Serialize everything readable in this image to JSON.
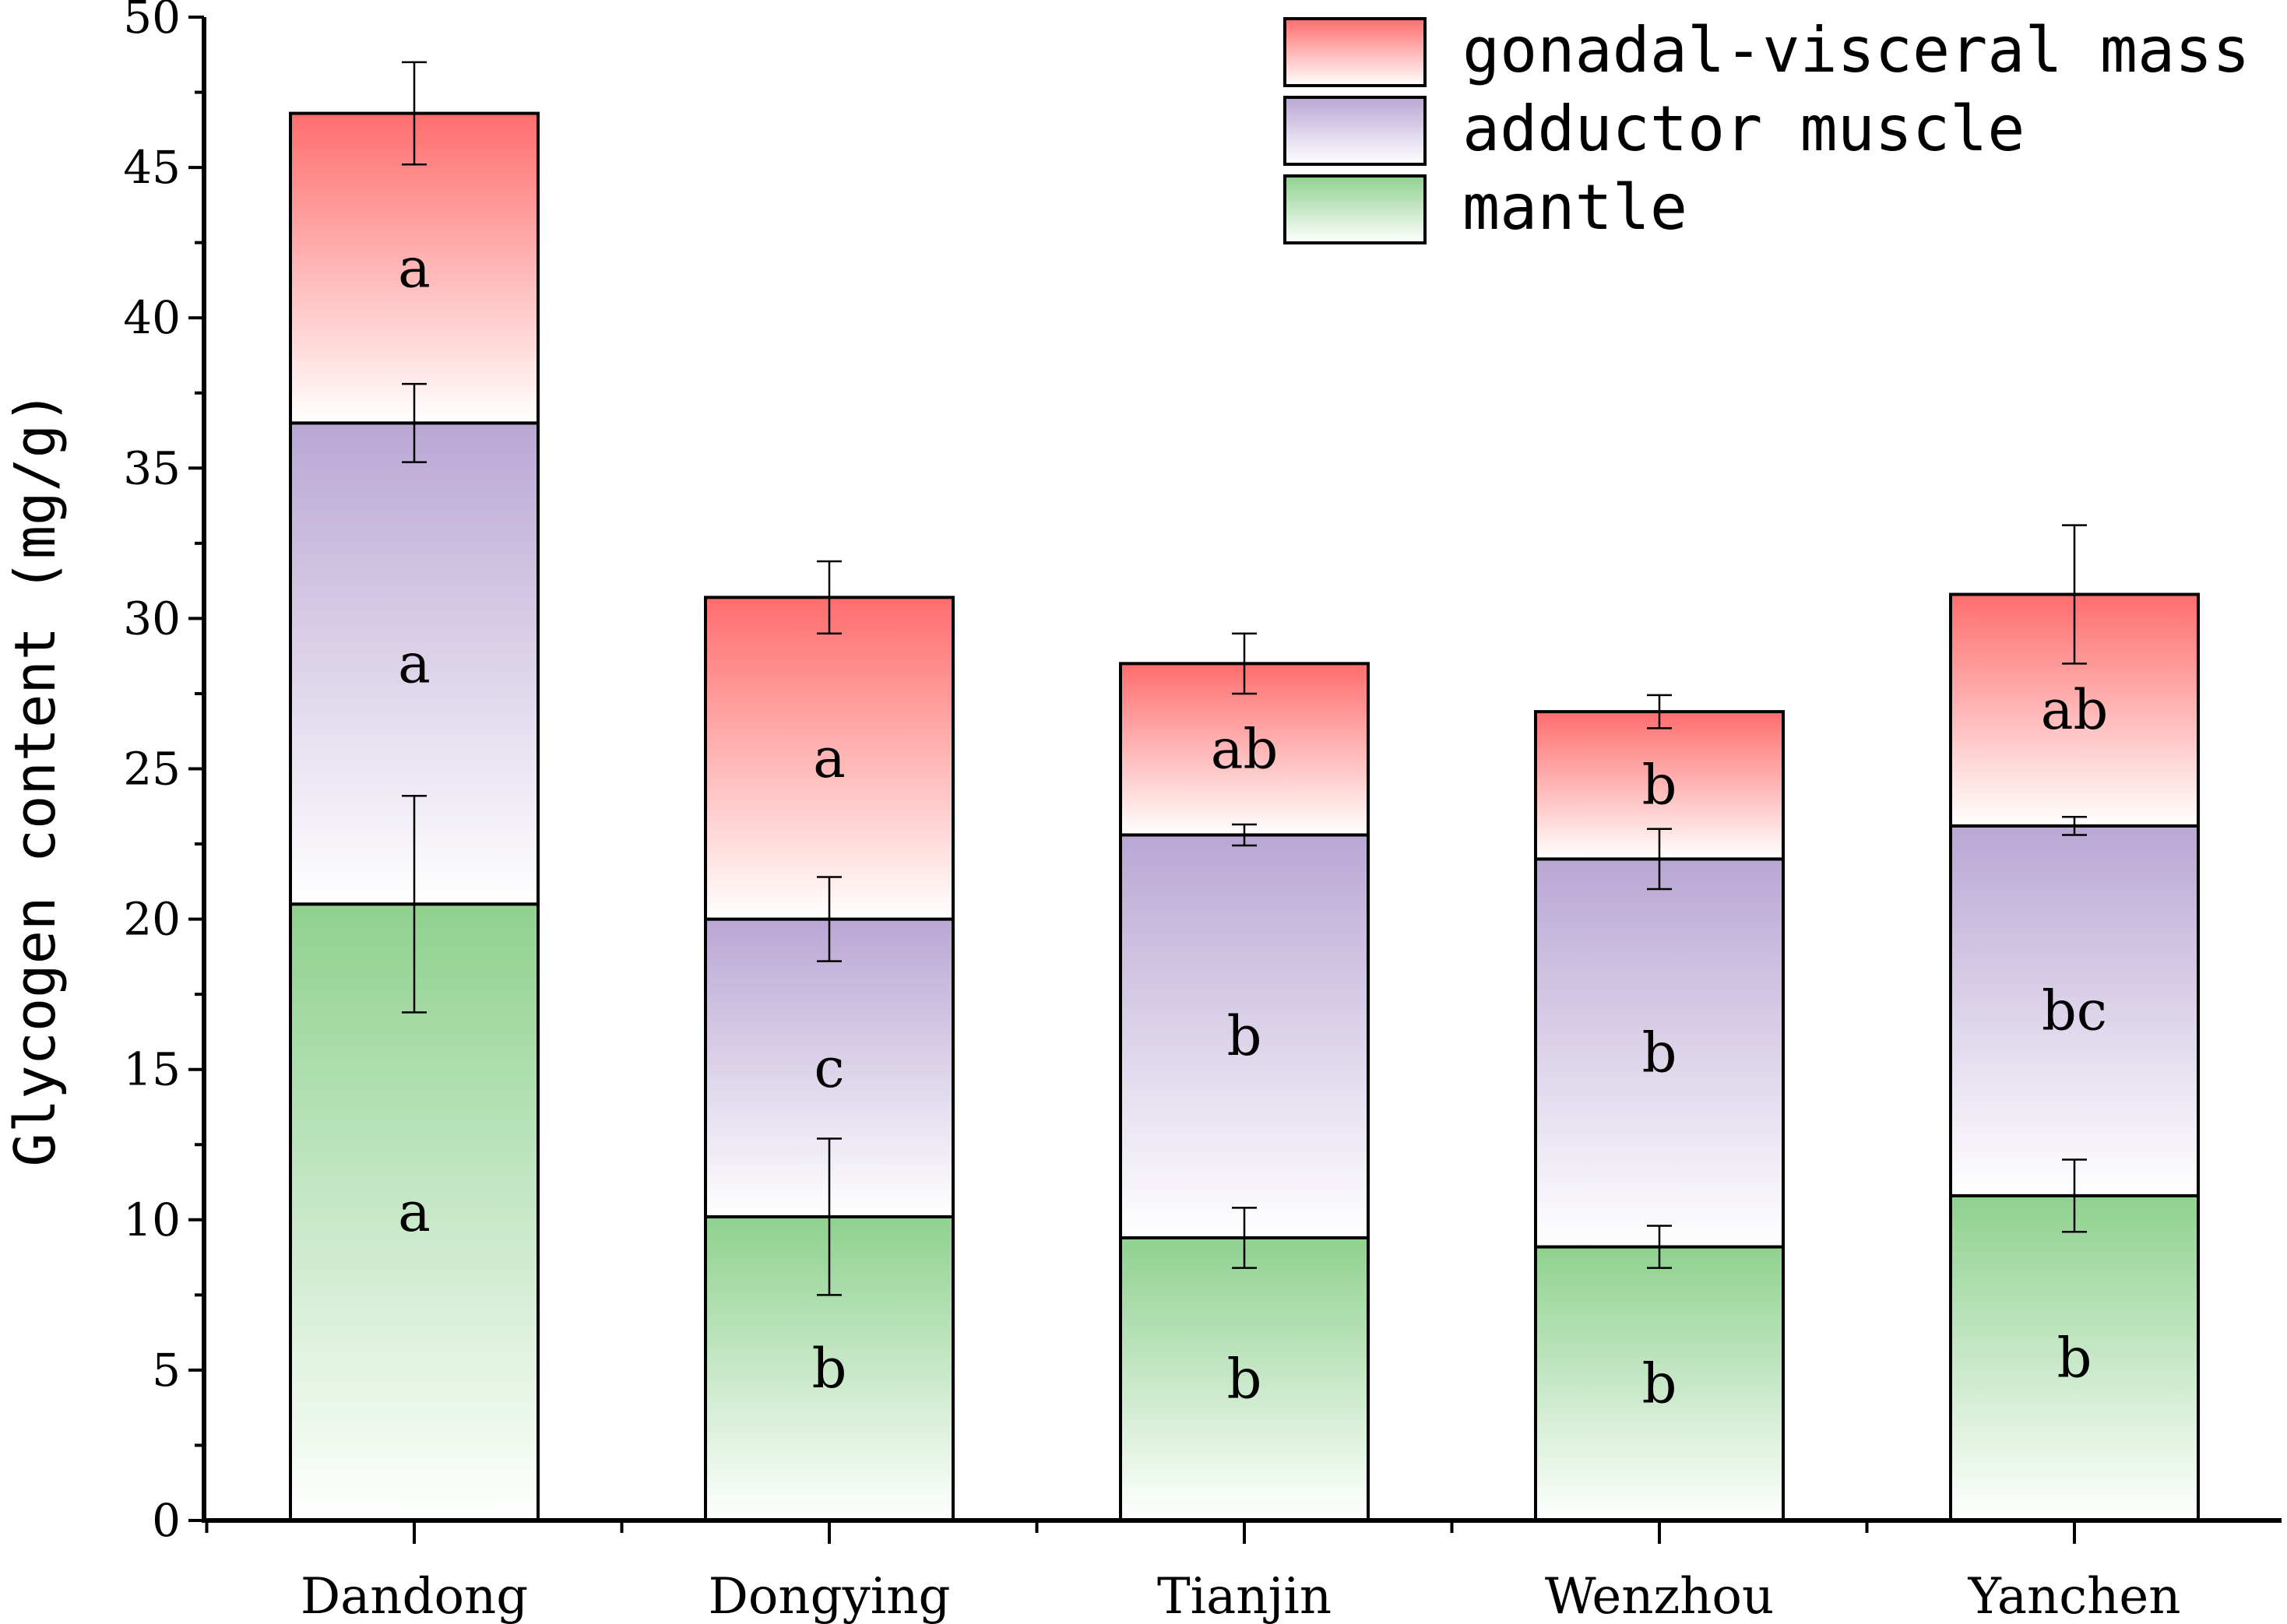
{
  "chart_data": {
    "type": "bar",
    "stacked": true,
    "title": "",
    "xlabel": "",
    "ylabel": "Glycogen content (mg/g)",
    "ylim": [
      0,
      50
    ],
    "yticks": [
      "0",
      "5",
      "10",
      "15",
      "20",
      "25",
      "30",
      "35",
      "40",
      "45",
      "50"
    ],
    "categories": [
      "Dandong",
      "Dongying",
      "Tianjin",
      "Wenzhou",
      "Yanchen"
    ],
    "legend_position": "top-right",
    "series": [
      {
        "name": "mantle",
        "color": "#8fd18f",
        "values": [
          20.5,
          10.1,
          9.4,
          9.1,
          10.8
        ],
        "errors": [
          3.6,
          2.6,
          1.0,
          0.7,
          1.2
        ],
        "labels": [
          "a",
          "b",
          "b",
          "b",
          "b"
        ]
      },
      {
        "name": "adductor muscle",
        "color": "#b9a7d4",
        "values": [
          16.0,
          9.9,
          13.4,
          12.9,
          12.3
        ],
        "errors": [
          1.3,
          1.4,
          0.35,
          1.0,
          0.3
        ],
        "labels": [
          "a",
          "c",
          "b",
          "b",
          "bc"
        ]
      },
      {
        "name": "gonadal-visceral mass",
        "color": "#ff6d6d",
        "values": [
          10.3,
          10.7,
          5.7,
          4.9,
          7.7
        ],
        "errors": [
          1.7,
          1.2,
          1.0,
          0.55,
          2.3
        ],
        "labels": [
          "a",
          "a",
          "ab",
          "b",
          "ab"
        ]
      }
    ]
  }
}
